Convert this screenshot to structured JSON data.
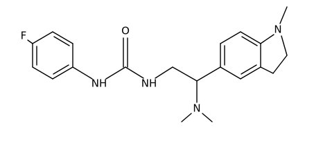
{
  "atom_labels": [
    "F",
    "NH",
    "O",
    "NH",
    "N",
    "N"
  ]
}
